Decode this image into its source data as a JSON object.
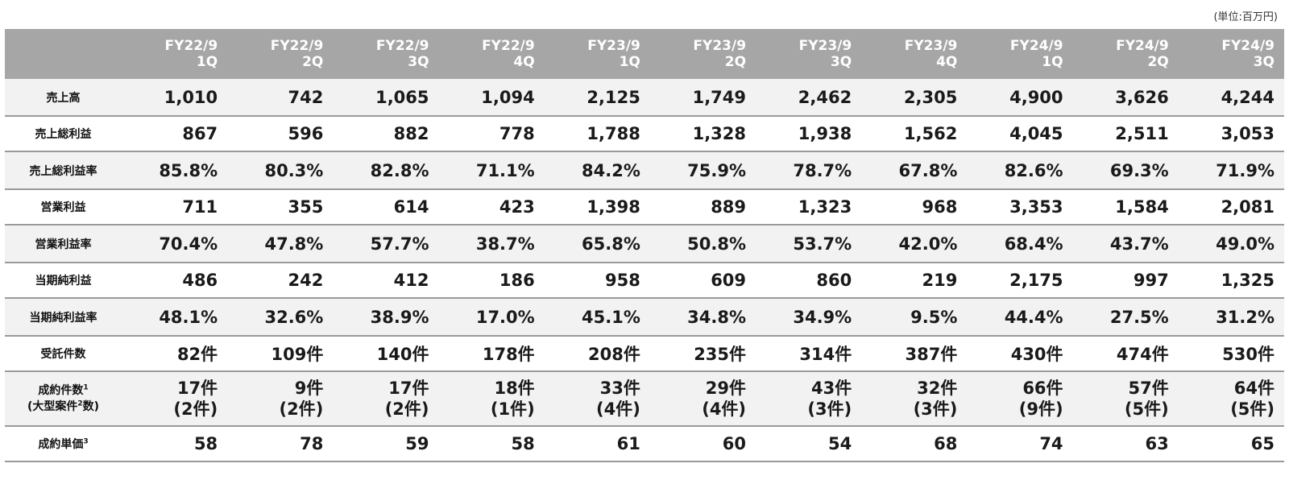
{
  "unit_note": "(単位:百万円)",
  "periods": [
    {
      "fy": "FY22/9",
      "q": "1Q"
    },
    {
      "fy": "FY22/9",
      "q": "2Q"
    },
    {
      "fy": "FY22/9",
      "q": "3Q"
    },
    {
      "fy": "FY22/9",
      "q": "4Q"
    },
    {
      "fy": "FY23/9",
      "q": "1Q"
    },
    {
      "fy": "FY23/9",
      "q": "2Q"
    },
    {
      "fy": "FY23/9",
      "q": "3Q"
    },
    {
      "fy": "FY23/9",
      "q": "4Q"
    },
    {
      "fy": "FY24/9",
      "q": "1Q"
    },
    {
      "fy": "FY24/9",
      "q": "2Q"
    },
    {
      "fy": "FY24/9",
      "q": "3Q"
    }
  ],
  "rows": [
    {
      "label": "売上高",
      "values": [
        "1,010",
        "742",
        "1,065",
        "1,094",
        "2,125",
        "1,749",
        "2,462",
        "2,305",
        "4,900",
        "3,626",
        "4,244"
      ]
    },
    {
      "label": "売上総利益",
      "values": [
        "867",
        "596",
        "882",
        "778",
        "1,788",
        "1,328",
        "1,938",
        "1,562",
        "4,045",
        "2,511",
        "3,053"
      ]
    },
    {
      "label": "売上総利益率",
      "values": [
        "85.8%",
        "80.3%",
        "82.8%",
        "71.1%",
        "84.2%",
        "75.9%",
        "78.7%",
        "67.8%",
        "82.6%",
        "69.3%",
        "71.9%"
      ]
    },
    {
      "label": "営業利益",
      "values": [
        "711",
        "355",
        "614",
        "423",
        "1,398",
        "889",
        "1,323",
        "968",
        "3,353",
        "1,584",
        "2,081"
      ]
    },
    {
      "label": "営業利益率",
      "values": [
        "70.4%",
        "47.8%",
        "57.7%",
        "38.7%",
        "65.8%",
        "50.8%",
        "53.7%",
        "42.0%",
        "68.4%",
        "43.7%",
        "49.0%"
      ]
    },
    {
      "label": "当期純利益",
      "values": [
        "486",
        "242",
        "412",
        "186",
        "958",
        "609",
        "860",
        "219",
        "2,175",
        "997",
        "1,325"
      ]
    },
    {
      "label": "当期純利益率",
      "values": [
        "48.1%",
        "32.6%",
        "38.9%",
        "17.0%",
        "45.1%",
        "34.8%",
        "34.9%",
        "9.5%",
        "44.4%",
        "27.5%",
        "31.2%"
      ]
    },
    {
      "label": "受託件数",
      "values": [
        "82件",
        "109件",
        "140件",
        "178件",
        "208件",
        "235件",
        "314件",
        "387件",
        "430件",
        "474件",
        "530件"
      ]
    }
  ],
  "deals_row": {
    "label_main": "成約件数",
    "label_main_sup": "1",
    "label_sub_a": "(大型案件",
    "label_sub_sup": "2",
    "label_sub_b": "数)",
    "count": [
      "17件",
      "9件",
      "17件",
      "18件",
      "33件",
      "29件",
      "43件",
      "32件",
      "66件",
      "57件",
      "64件"
    ],
    "large": [
      "(2件)",
      "(2件)",
      "(2件)",
      "(1件)",
      "(4件)",
      "(4件)",
      "(3件)",
      "(3件)",
      "(9件)",
      "(5件)",
      "(5件)"
    ]
  },
  "unit_price_row": {
    "label": "成約単価",
    "label_sup": "3",
    "values": [
      "58",
      "78",
      "59",
      "58",
      "61",
      "60",
      "54",
      "68",
      "74",
      "63",
      "65"
    ]
  }
}
